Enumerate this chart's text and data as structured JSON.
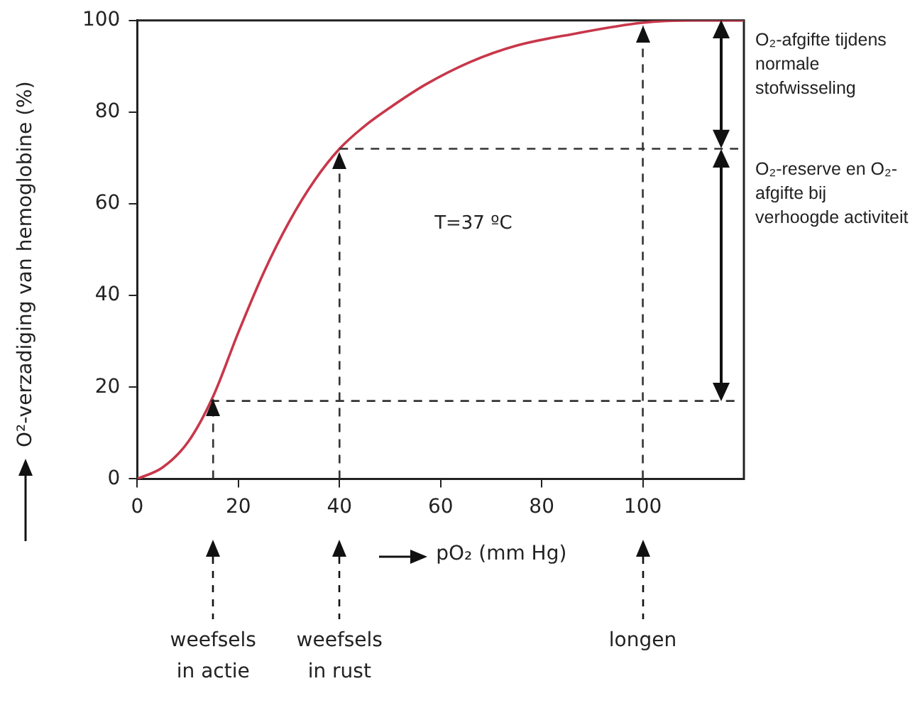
{
  "chart_data": {
    "type": "line",
    "xlabel": "pO₂ (mm Hg)",
    "ylabel": "O²-verzadiging van hemoglobine (%)",
    "x": [
      0,
      5,
      10,
      15,
      20,
      25,
      30,
      35,
      40,
      45,
      50,
      57,
      66,
      75,
      86,
      100,
      110,
      120
    ],
    "series": [
      {
        "color": "#c8374a",
        "values": [
          0,
          2.5,
          8,
          18,
          32,
          45,
          56,
          65,
          72,
          77,
          81,
          86,
          91,
          94.5,
          97,
          99.5,
          100,
          100
        ]
      }
    ],
    "xlim": [
      0,
      120
    ],
    "xticks": [
      0,
      20,
      40,
      60,
      80,
      100
    ],
    "ylim": [
      0,
      100
    ],
    "yticks": [
      0,
      20,
      40,
      60,
      80,
      100
    ],
    "grid": false,
    "legend": false,
    "marker": "none",
    "line_style": "solid",
    "ref_lines": [
      {
        "axis": "x",
        "value": 15,
        "color": "#333333",
        "line_style": "dashed"
      },
      {
        "axis": "x",
        "value": 40,
        "color": "#333333",
        "line_style": "dashed"
      },
      {
        "axis": "x",
        "value": 100,
        "color": "#333333",
        "line_style": "dashed"
      },
      {
        "axis": "y",
        "value": 72,
        "color": "#333333",
        "line_style": "dashed"
      },
      {
        "axis": "y",
        "value": 17,
        "color": "#333333",
        "line_style": "dashed"
      }
    ],
    "annotations": [
      "T=37 ºC",
      {
        "text": "weefsels in actie",
        "x": 15
      },
      {
        "text": "weefsels in rust",
        "x": 40
      },
      {
        "text": "longen",
        "x": 100
      },
      "O₂-afgifte tijdens normale stofwisseling",
      "O₂-reserve en O₂-afgifte bij verhoogde activiteit"
    ]
  }
}
